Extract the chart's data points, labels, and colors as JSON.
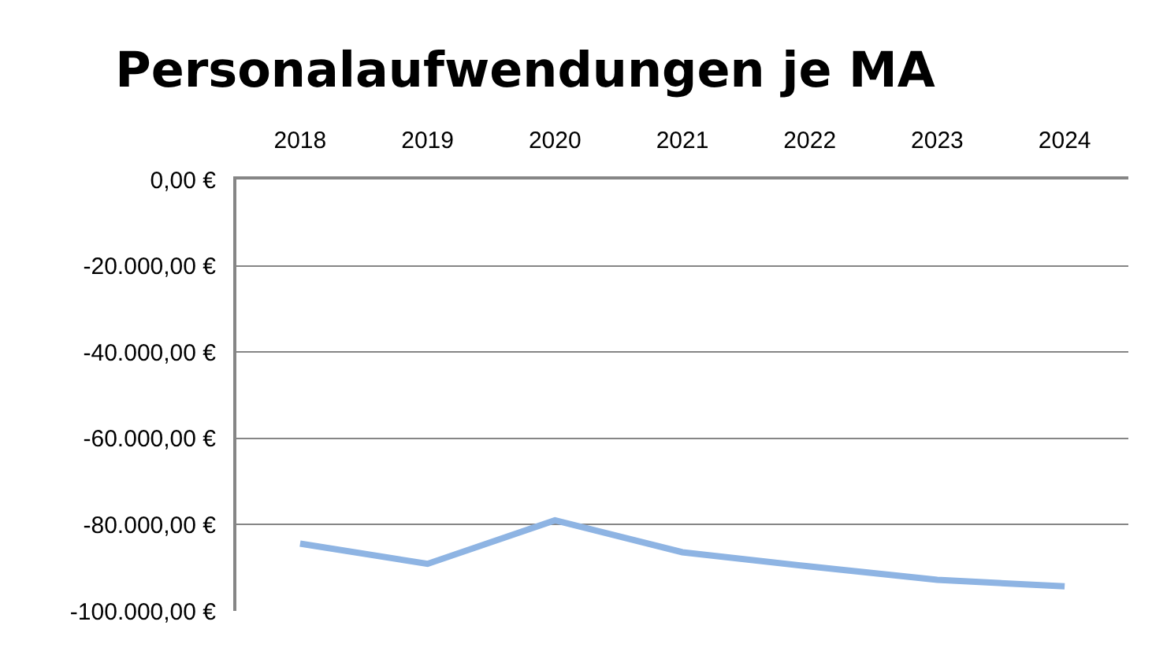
{
  "chart_data": {
    "type": "line",
    "title": "Personalaufwendungen je MA",
    "categories": [
      "2018",
      "2019",
      "2020",
      "2021",
      "2022",
      "2023",
      "2024"
    ],
    "series": [
      {
        "color": "#8eb4e3",
        "values": [
          -84400,
          -89100,
          -79000,
          -86400,
          -89700,
          -92800,
          -94300
        ]
      }
    ],
    "ylim": [
      -100000,
      0
    ],
    "yticks": [
      {
        "value": -100000,
        "label": "-100.000,00 €"
      },
      {
        "value": -80000,
        "label": "-80.000,00 €"
      },
      {
        "value": -60000,
        "label": "-60.000,00 €"
      },
      {
        "value": -40000,
        "label": "-40.000,00 €"
      },
      {
        "value": -20000,
        "label": "-20.000,00 €"
      },
      {
        "value": 0,
        "label": "0,00 €"
      }
    ],
    "grid": "y",
    "legend": false,
    "marker": "none",
    "line_style": "solid"
  }
}
